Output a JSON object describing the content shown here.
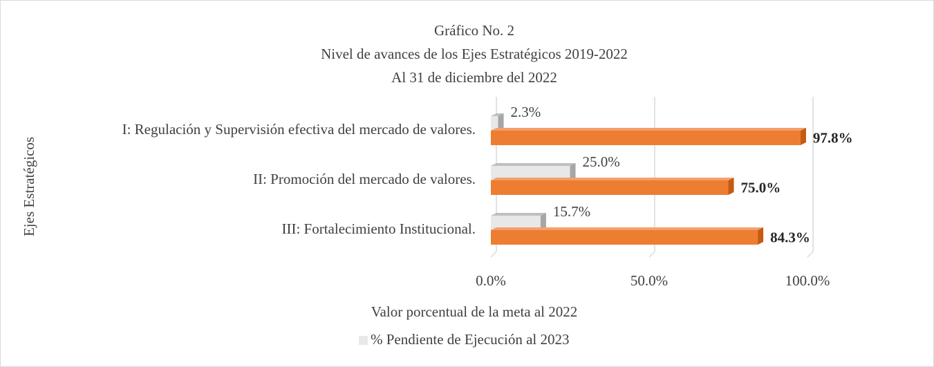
{
  "chart_data": {
    "type": "bar",
    "orientation": "horizontal",
    "title": "Gráfico No. 2",
    "subtitle": [
      "Nivel de avances de los Ejes Estratégicos 2019-2022",
      "Al 31 de diciembre del 2022"
    ],
    "categories": [
      "I: Regulación y Supervisión efectiva del mercado de valores.",
      "II: Promoción del mercado de valores.",
      "III: Fortalecimiento Institucional."
    ],
    "series": [
      {
        "name": "% Pendiente de Ejecución al 2023",
        "color": "#e8e8e8",
        "values": [
          2.3,
          25.0,
          15.7
        ],
        "value_labels": [
          "2.3%",
          "25.0%",
          "15.7%"
        ]
      },
      {
        "color": "#ed7d31",
        "values": [
          97.8,
          75.0,
          84.3
        ],
        "value_labels": [
          "97.8%",
          "75.0%",
          "84.3%"
        ]
      }
    ],
    "xlim": [
      0,
      100
    ],
    "xticks": [
      {
        "value": 0,
        "label": "0.0%"
      },
      {
        "value": 50,
        "label": "50.0%"
      },
      {
        "value": 100,
        "label": "100.0%"
      }
    ],
    "x_label": "Valor porcentual de la meta al 2022",
    "y_label": "Ejes Estratégicos",
    "grid": true,
    "legend": "bottom"
  }
}
